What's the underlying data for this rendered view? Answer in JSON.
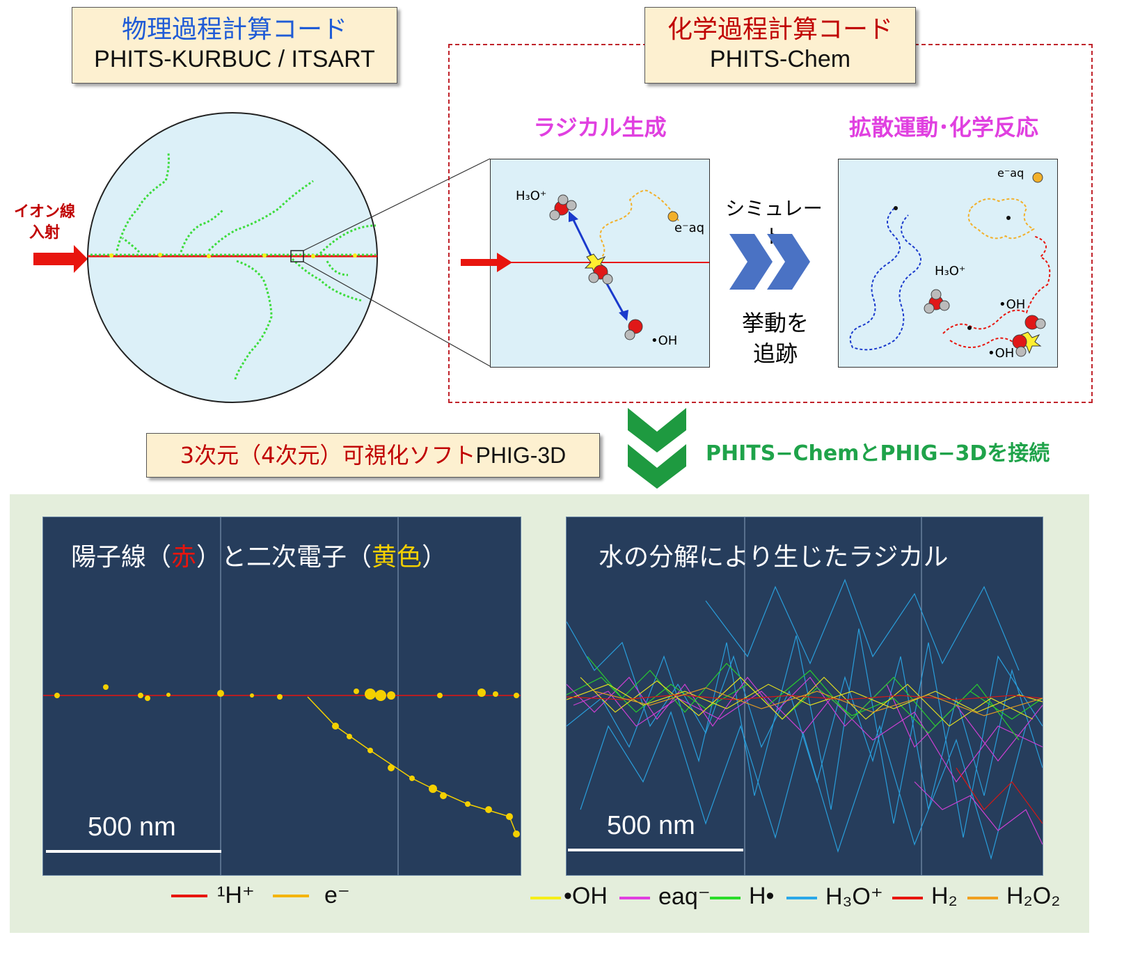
{
  "physics": {
    "title": "物理過程計算コード",
    "code": "PHITS-KURBUC / ITSART"
  },
  "chemistry": {
    "title": "化学過程計算コード",
    "code": "PHITS-Chem"
  },
  "ion_beam_label": [
    "イオン線",
    "入射"
  ],
  "radical_generation": "ラジカル生成",
  "diffusion_reaction": "拡散運動･化学反応",
  "simulate": "シミュレート",
  "track_behavior": [
    "挙動を",
    "追跡"
  ],
  "species": {
    "h3o_left": "H₃O⁺",
    "eaq_left": "e⁻aq",
    "oh_left": "•OH",
    "eaq_right": "e⁻aq",
    "h3o_right": "H₃O⁺",
    "oh_right1": "•OH",
    "oh_right2": "•OH"
  },
  "phig": {
    "label_jp": "3次元（4次元）可視化ソフト",
    "label_en": "PHIG-3D"
  },
  "connect_label": "PHITS−ChemとPHIG−3Dを接続",
  "panel_left": {
    "title_parts": [
      "陽子線（",
      "赤",
      "）と二次電子（",
      "黄色",
      "）"
    ],
    "scale_label": "500 nm"
  },
  "panel_right": {
    "title": "水の分解により生じたラジカル",
    "scale_label": "500 nm"
  },
  "legend_left": [
    {
      "name": "¹H⁺",
      "color": "#e8150e"
    },
    {
      "name": "e⁻",
      "color": "#f4b400"
    }
  ],
  "legend_right": [
    {
      "name": "•OH",
      "color": "#f6ee1a"
    },
    {
      "name": "eaq⁻",
      "color": "#e040e0"
    },
    {
      "name": "H•",
      "color": "#2adc2a"
    },
    {
      "name": "H₃O⁺",
      "color": "#2aa8e8"
    },
    {
      "name": "H₂",
      "color": "#e8150e"
    },
    {
      "name": "H₂O₂",
      "color": "#f0a020"
    }
  ],
  "colors": {
    "label_bg": "#fdf0d0",
    "panel_bg": "#263d5c",
    "bottom_bg": "#e4eedc",
    "chevron_blue": "#4a72c4",
    "chevron_green": "#1e9a40",
    "beam_red": "#e8150e"
  }
}
